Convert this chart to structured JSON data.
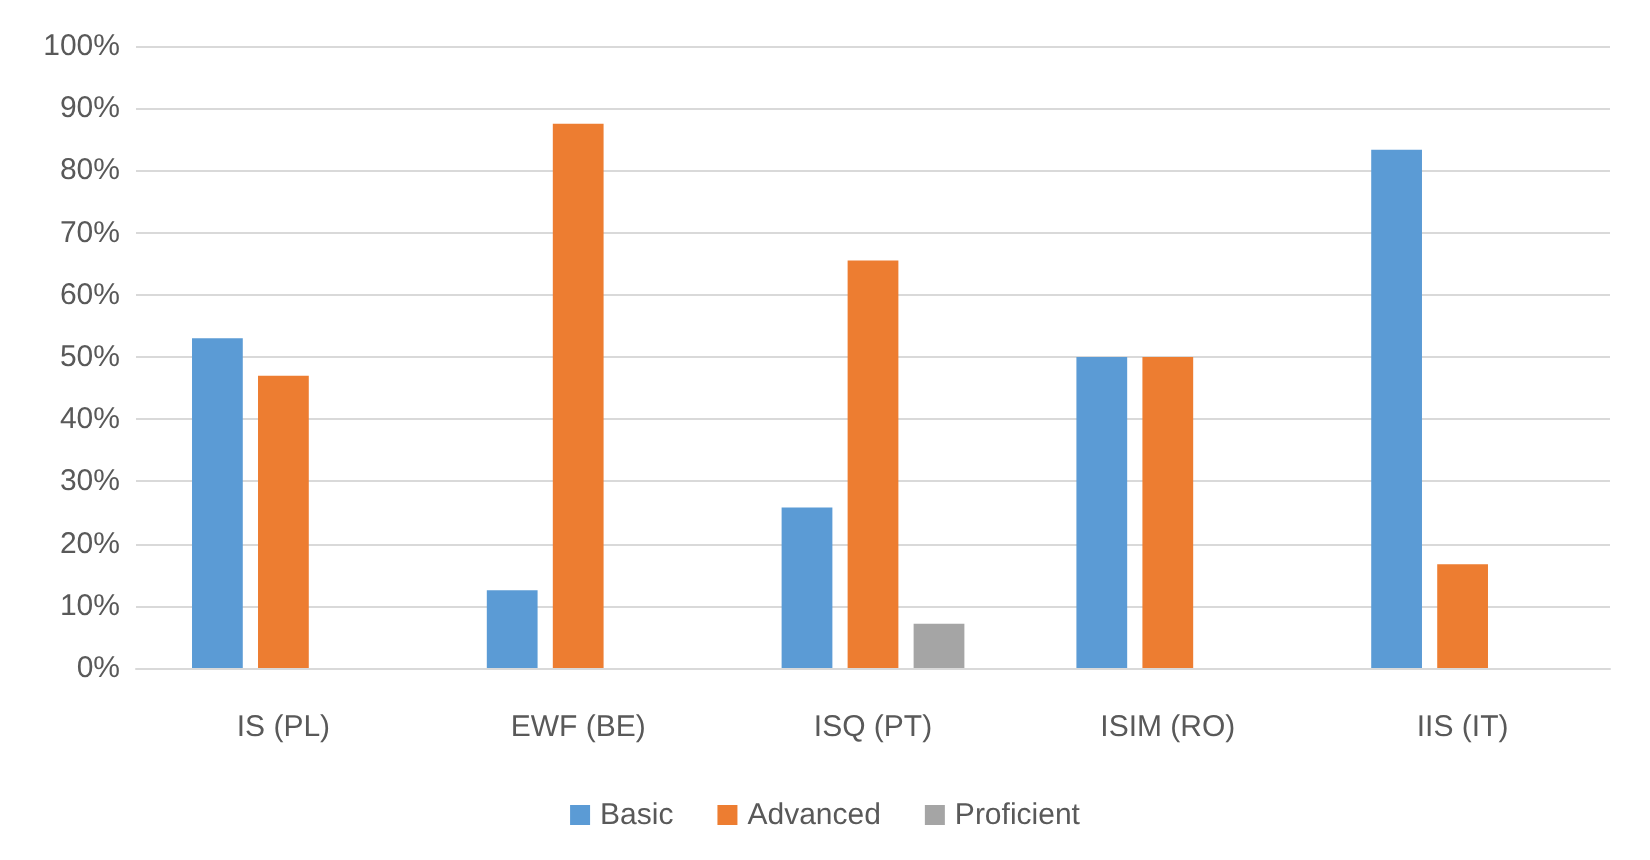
{
  "chart_data": {
    "type": "bar",
    "categories": [
      "IS (PL)",
      "EWF (BE)",
      "ISQ (PT)",
      "ISIM (RO)",
      "IIS (IT)"
    ],
    "series": [
      {
        "name": "Basic",
        "color": "#5b9bd5",
        "values": [
          53,
          12.5,
          25.8,
          50,
          83.3
        ]
      },
      {
        "name": "Advanced",
        "color": "#ed7d31",
        "values": [
          47,
          87.5,
          65.5,
          50,
          16.7
        ]
      },
      {
        "name": "Proficient",
        "color": "#a5a5a5",
        "values": [
          0,
          0,
          7.1,
          0,
          0
        ]
      }
    ],
    "ylim": [
      0,
      100
    ],
    "yticks": [
      {
        "value": 0,
        "label": "0%"
      },
      {
        "value": 10,
        "label": "10%"
      },
      {
        "value": 20,
        "label": "20%"
      },
      {
        "value": 30,
        "label": "30%"
      },
      {
        "value": 40,
        "label": "40%"
      },
      {
        "value": 50,
        "label": "50%"
      },
      {
        "value": 60,
        "label": "60%"
      },
      {
        "value": 70,
        "label": "70%"
      },
      {
        "value": 80,
        "label": "80%"
      },
      {
        "value": 90,
        "label": "90%"
      },
      {
        "value": 100,
        "label": "100%"
      }
    ],
    "grid": "y",
    "legend": "bottom"
  }
}
